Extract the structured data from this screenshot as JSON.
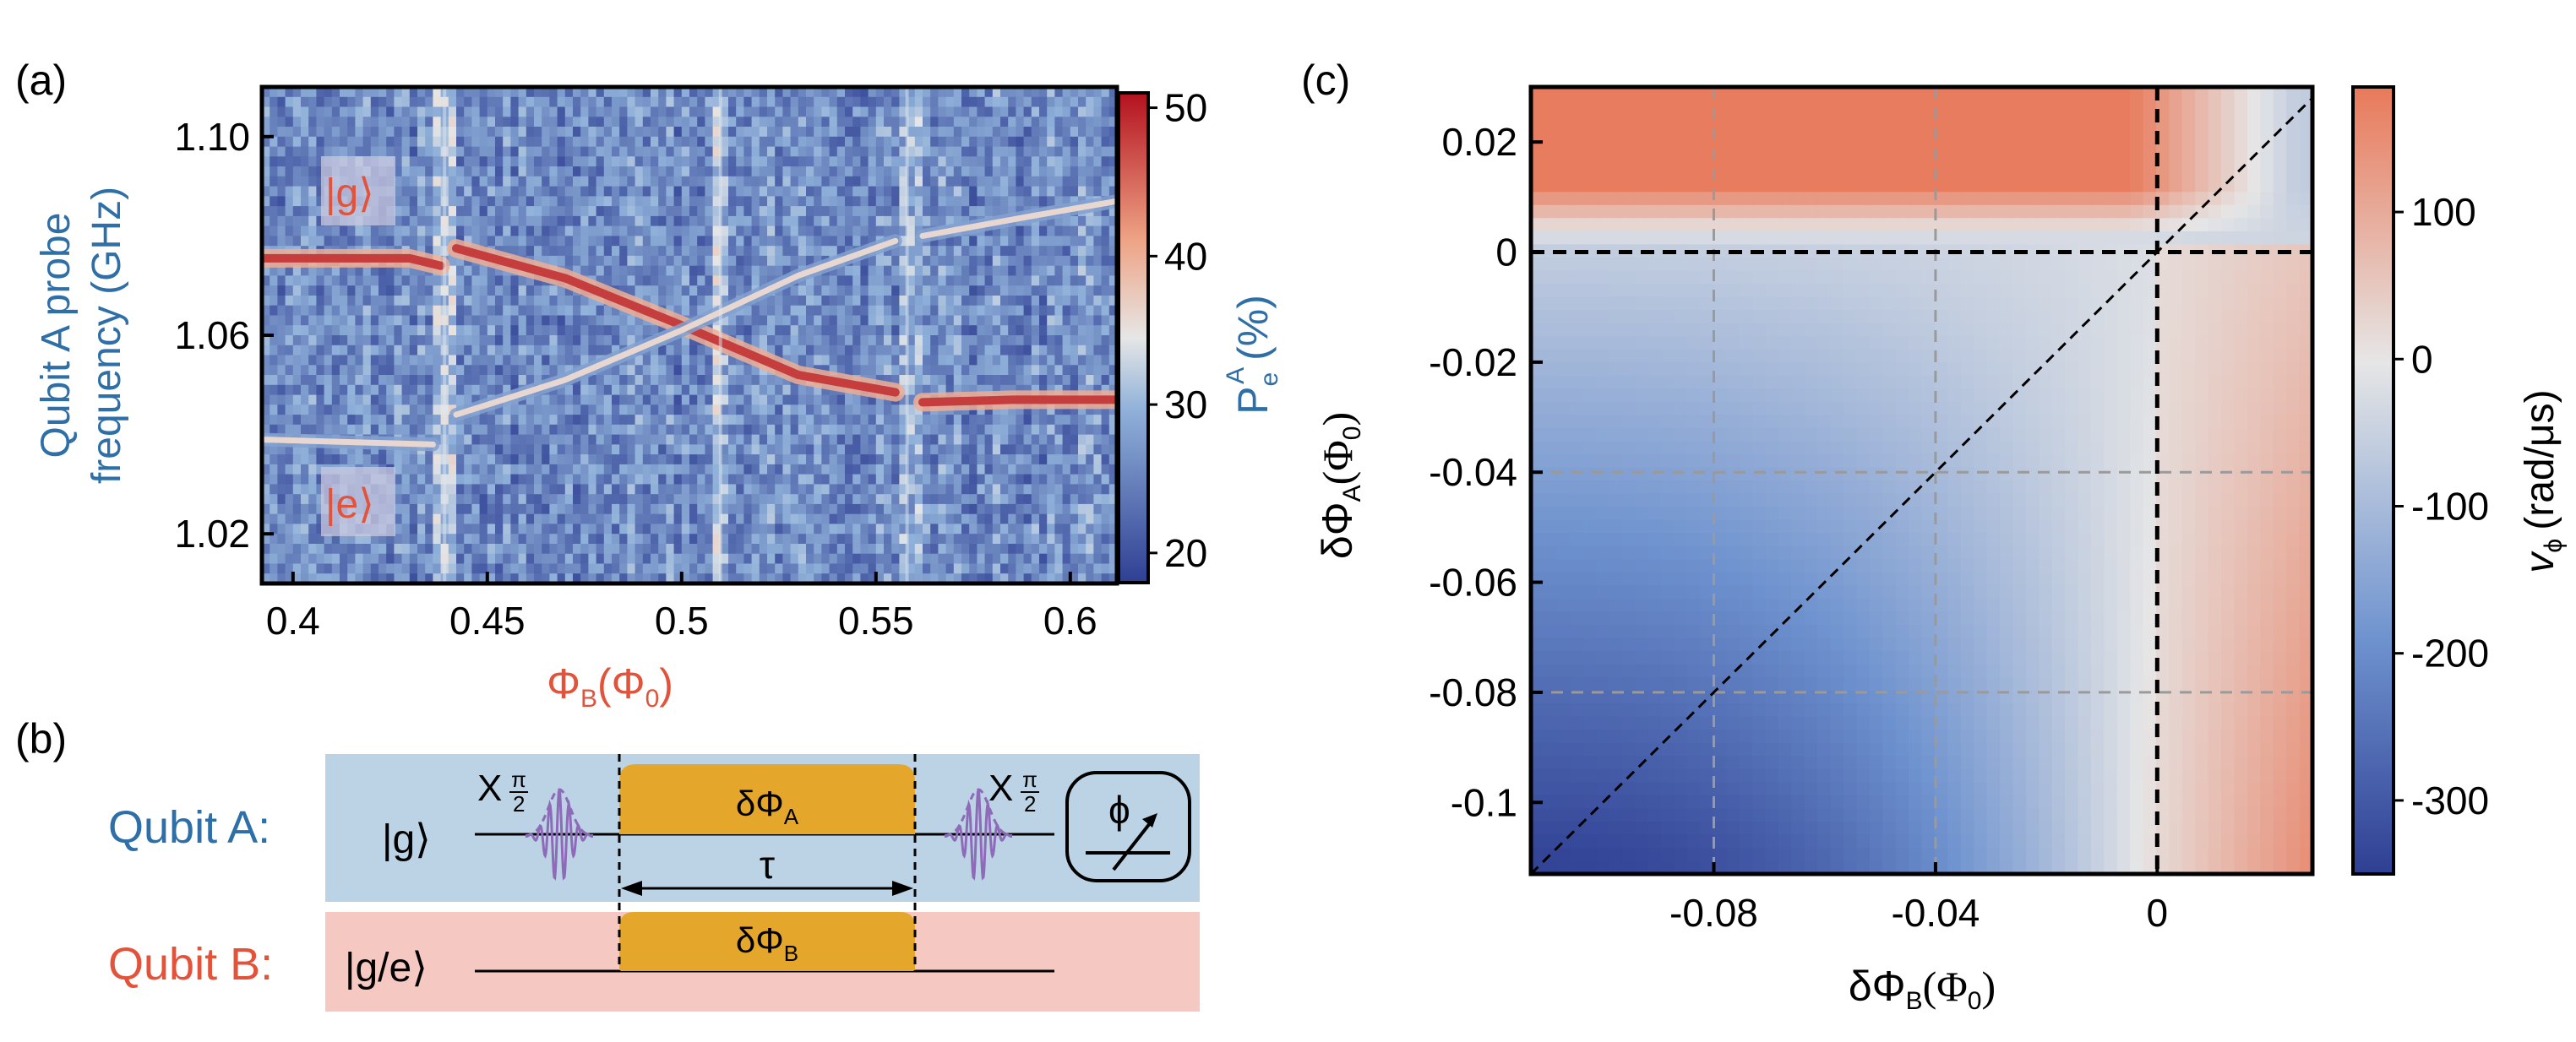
{
  "panel_labels": {
    "a": "(a)",
    "b": "(b)",
    "c": "(c)"
  },
  "colors": {
    "blue_text": "#2e6fa7",
    "red_text": "#e2533a",
    "map_low": "#2f3f93",
    "map_mid": "#e6e6e6",
    "map_high": "#e8795a",
    "spectro_high": "#b3111e",
    "panel_b_blue_band": "#bcd3e5",
    "panel_b_red_band": "#f5c8c2",
    "pulse_orange": "#e5a72b",
    "pulse_purple": "#8e6bb8"
  },
  "panel_a": {
    "ylabel_line1": "Qubit A probe",
    "ylabel_line2": "frequency (GHz)",
    "xlabel_main": "Φ",
    "xlabel_sub": "B",
    "xlabel_paren_open": "(Φ",
    "xlabel_sub0": "0",
    "xlabel_paren_close": ")",
    "state_g": "|g⟩",
    "state_e": "|e⟩",
    "colorbar_label_main": "P",
    "colorbar_label_sub": "e",
    "colorbar_label_sup": "A",
    "colorbar_label_unit": "(%)",
    "colorbar_ticks": [
      "50",
      "40",
      "30",
      "20"
    ]
  },
  "panel_b": {
    "qubit_a_label": "Qubit A:",
    "qubit_b_label": "Qubit B:",
    "state_a": "|g⟩",
    "state_b": "|g/e⟩",
    "pulse_a_main": "δΦ",
    "pulse_a_sub": "A",
    "pulse_b_main": "δΦ",
    "pulse_b_sub": "B",
    "tau": "τ",
    "x_gate": "X",
    "x_gate_num": "π",
    "x_gate_den": "2",
    "measure_symbol": "ϕ"
  },
  "panel_c": {
    "ylabel_main": "δΦ",
    "ylabel_sub": "A",
    "ylabel_paren_open": "(Φ",
    "ylabel_sub0": "0",
    "ylabel_paren_close": ")",
    "xlabel_main": "δΦ",
    "xlabel_sub": "B",
    "xlabel_paren_open": "(Φ",
    "xlabel_sub0": "0",
    "xlabel_paren_close": ")",
    "colorbar_label_main": "v",
    "colorbar_label_sub": "ϕ",
    "colorbar_label_unit": "(rad/μs)",
    "colorbar_ticks": [
      "100",
      "0",
      "-100",
      "-200",
      "-300"
    ]
  },
  "chart_data": [
    {
      "type": "heatmap",
      "panel": "a",
      "title": "",
      "xlabel": "ΦB(Φ0)",
      "ylabel": "Qubit A probe frequency (GHz)",
      "xlim": [
        0.392,
        0.612
      ],
      "ylim": [
        1.01,
        1.11
      ],
      "x_ticks": [
        0.4,
        0.45,
        0.5,
        0.55,
        0.6
      ],
      "x_tick_labels": [
        "0.4",
        "0.45",
        "0.5",
        "0.55",
        "0.6"
      ],
      "y_ticks": [
        1.02,
        1.06,
        1.1
      ],
      "y_tick_labels": [
        "1.02",
        "1.06",
        "1.10"
      ],
      "colorbar": {
        "label": "PeA (%)",
        "range": [
          18,
          51
        ],
        "ticks": [
          20,
          30,
          40,
          50
        ]
      },
      "background_level": 26,
      "bright_lines": [
        {
          "name": "",
          "peak": 48,
          "points": [
            [
              0.392,
              1.0755
            ],
            [
              0.43,
              1.0755
            ],
            [
              0.438,
              1.074
            ]
          ]
        },
        {
          "name": "",
          "peak": 48,
          "points": [
            [
              0.442,
              1.0775
            ],
            [
              0.47,
              1.0715
            ],
            [
              0.5,
              1.062
            ],
            [
              0.53,
              1.052
            ],
            [
              0.555,
              1.0485
            ]
          ]
        },
        {
          "name": "",
          "peak": 48,
          "points": [
            [
              0.562,
              1.0465
            ],
            [
              0.585,
              1.047
            ],
            [
              0.612,
              1.047
            ]
          ]
        },
        {
          "name": "",
          "peak": 36,
          "points": [
            [
              0.392,
              1.039
            ],
            [
              0.436,
              1.038
            ]
          ]
        },
        {
          "name": "",
          "peak": 36,
          "points": [
            [
              0.442,
              1.044
            ],
            [
              0.47,
              1.051
            ],
            [
              0.5,
              1.061
            ],
            [
              0.53,
              1.072
            ],
            [
              0.555,
              1.079
            ]
          ]
        },
        {
          "name": "",
          "peak": 36,
          "points": [
            [
              0.562,
              1.08
            ],
            [
              0.59,
              1.084
            ],
            [
              0.612,
              1.087
            ]
          ]
        }
      ],
      "vertical_features": [
        0.439,
        0.51,
        0.558
      ]
    },
    {
      "type": "heatmap",
      "panel": "c",
      "title": "",
      "xlabel": "δΦB(Φ0)",
      "ylabel": "δΦA(Φ0)",
      "xlim": [
        -0.113,
        0.028
      ],
      "ylim": [
        -0.113,
        0.03
      ],
      "x_ticks": [
        -0.08,
        -0.04,
        0
      ],
      "x_tick_labels": [
        "-0.08",
        "-0.04",
        "0"
      ],
      "y_ticks": [
        0.02,
        0,
        -0.02,
        -0.04,
        -0.06,
        -0.08,
        -0.1
      ],
      "y_tick_labels": [
        "0.02",
        "0",
        "-0.02",
        "-0.04",
        "-0.06",
        "-0.08",
        "-0.1"
      ],
      "colorbar": {
        "label": "vϕ (rad/μs)",
        "range": [
          -350,
          185
        ],
        "ticks": [
          100,
          0,
          -100,
          -200,
          -300
        ]
      },
      "grid_dashed_gray_x": [
        -0.08,
        -0.04
      ],
      "grid_dashed_gray_y": [
        -0.04,
        -0.08
      ],
      "dashed_black_lines": [
        "x = 0",
        "y = 0",
        "y = x"
      ],
      "value_model": {
        "upper_region_y_above_0": 180,
        "lower_left_corner": -340,
        "right_edge_lower": 150,
        "top_right_corner": -60
      }
    }
  ]
}
